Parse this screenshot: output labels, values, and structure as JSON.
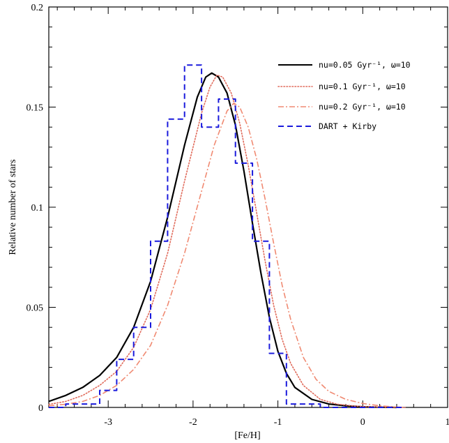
{
  "chart_data": {
    "type": "line",
    "title": "",
    "xlabel": "[Fe/H]",
    "ylabel": "Relative number of stars",
    "xlim": [
      -3.7,
      1.0
    ],
    "ylim": [
      0,
      0.2
    ],
    "x_ticks": [
      {
        "value": -3,
        "label": "-3"
      },
      {
        "value": -2,
        "label": "-2"
      },
      {
        "value": -1,
        "label": "-1"
      },
      {
        "value": 0,
        "label": "0"
      },
      {
        "value": 1,
        "label": "1"
      }
    ],
    "y_ticks": [
      {
        "value": 0,
        "label": "0"
      },
      {
        "value": 0.05,
        "label": "0.05"
      },
      {
        "value": 0.1,
        "label": "0.1"
      },
      {
        "value": 0.15,
        "label": "0.15"
      },
      {
        "value": 0.2,
        "label": "0.2"
      }
    ],
    "grid": false,
    "legend_position": "top-right",
    "series": [
      {
        "name": "nu=0.05 Gyr⁻¹, ω=10",
        "style": "solid",
        "color": "#000000",
        "x": [
          -3.7,
          -3.5,
          -3.3,
          -3.1,
          -2.9,
          -2.7,
          -2.5,
          -2.3,
          -2.1,
          -1.95,
          -1.85,
          -1.78,
          -1.7,
          -1.6,
          -1.5,
          -1.4,
          -1.3,
          -1.2,
          -1.1,
          -1.0,
          -0.9,
          -0.8,
          -0.6,
          -0.4,
          -0.2,
          0.0,
          0.2,
          0.4
        ],
        "y": [
          0.003,
          0.006,
          0.01,
          0.016,
          0.025,
          0.04,
          0.063,
          0.095,
          0.131,
          0.155,
          0.165,
          0.167,
          0.165,
          0.157,
          0.141,
          0.118,
          0.092,
          0.067,
          0.045,
          0.028,
          0.017,
          0.01,
          0.004,
          0.0017,
          0.0008,
          0.0003,
          0.0001,
          0.0
        ]
      },
      {
        "name": "nu=0.1 Gyr⁻¹, ω=10",
        "style": "dotted",
        "color": "#e06a5a",
        "x": [
          -3.7,
          -3.5,
          -3.3,
          -3.1,
          -2.9,
          -2.7,
          -2.5,
          -2.3,
          -2.1,
          -1.9,
          -1.8,
          -1.72,
          -1.65,
          -1.55,
          -1.45,
          -1.35,
          -1.25,
          -1.15,
          -1.05,
          -0.95,
          -0.85,
          -0.7,
          -0.5,
          -0.3,
          -0.1,
          0.1,
          0.3,
          0.5
        ],
        "y": [
          0.0015,
          0.003,
          0.006,
          0.011,
          0.018,
          0.03,
          0.049,
          0.077,
          0.113,
          0.147,
          0.16,
          0.166,
          0.165,
          0.157,
          0.142,
          0.121,
          0.097,
          0.073,
          0.051,
          0.034,
          0.022,
          0.011,
          0.004,
          0.0016,
          0.0007,
          0.0003,
          0.0001,
          0.0
        ]
      },
      {
        "name": "nu=0.2 Gyr⁻¹, ω=10",
        "style": "dashdot",
        "color": "#f08a72",
        "x": [
          -3.7,
          -3.5,
          -3.3,
          -3.1,
          -2.9,
          -2.7,
          -2.5,
          -2.3,
          -2.1,
          -1.9,
          -1.75,
          -1.6,
          -1.52,
          -1.45,
          -1.35,
          -1.25,
          -1.15,
          -1.05,
          -0.95,
          -0.85,
          -0.7,
          -0.55,
          -0.4,
          -0.2,
          0.0,
          0.2,
          0.4,
          0.5
        ],
        "y": [
          0.0008,
          0.0016,
          0.003,
          0.006,
          0.011,
          0.019,
          0.031,
          0.051,
          0.077,
          0.108,
          0.131,
          0.148,
          0.152,
          0.15,
          0.14,
          0.124,
          0.104,
          0.082,
          0.061,
          0.044,
          0.025,
          0.014,
          0.008,
          0.004,
          0.002,
          0.0008,
          0.0002,
          0.0
        ]
      },
      {
        "name": "DART + Kirby",
        "style": "dashed-step",
        "color": "#1a1adc",
        "bins": [
          -3.7,
          -3.5,
          -3.3,
          -3.1,
          -2.9,
          -2.7,
          -2.5,
          -2.3,
          -2.1,
          -1.9,
          -1.7,
          -1.5,
          -1.3,
          -1.1,
          -0.9,
          -0.7,
          -0.5,
          -0.3,
          -0.1,
          0.1,
          0.3,
          0.5
        ],
        "values": [
          0.0,
          0.0017,
          0.0017,
          0.0085,
          0.024,
          0.04,
          0.083,
          0.144,
          0.171,
          0.14,
          0.154,
          0.122,
          0.083,
          0.027,
          0.0017,
          0.0017,
          0.0,
          0.0,
          0.0,
          0.0,
          0.0
        ]
      }
    ]
  }
}
